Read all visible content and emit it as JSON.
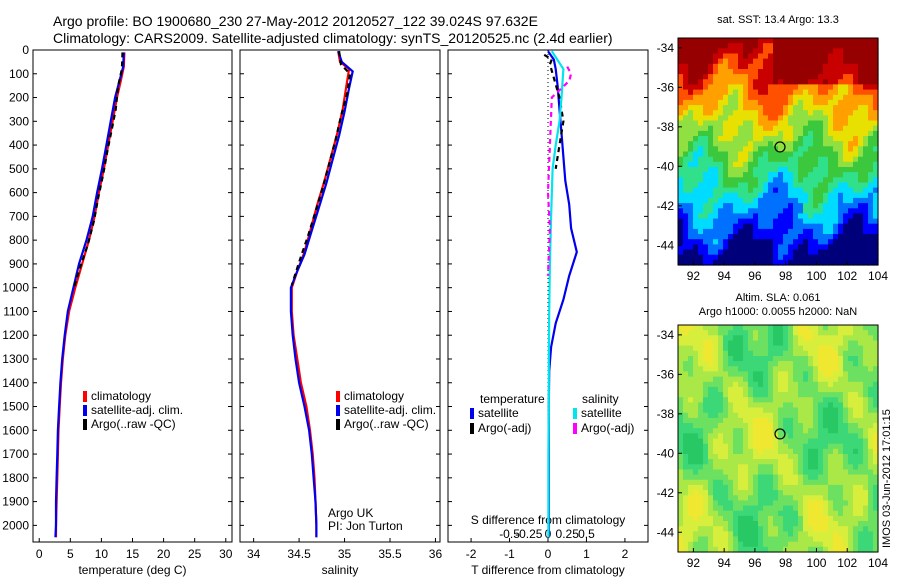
{
  "figure": {
    "title_line1": "Argo profile: BO 1900680_230 27-May-2012 20120527_122 39.024S 97.632E",
    "title_line2": "Climatology: CARS2009. Satellite-adjusted climatology: synTS_20120525.nc (2.4d earlier)",
    "side_stamp": "IMOS 03-Jun-2012 17:01:15"
  },
  "colors": {
    "climatology": "#ff0000",
    "satellite": "#0000ee",
    "argo": "#000000",
    "salinity_satellite": "#00e5ee",
    "salinity_argo": "#ff00ff"
  },
  "chart_data": [
    {
      "id": "temperature",
      "type": "line",
      "xlabel": "temperature (deg C)",
      "xlim": [
        -1,
        31
      ],
      "xticks": [
        0,
        5,
        10,
        15,
        20,
        25,
        30
      ],
      "ylim": [
        2070,
        0
      ],
      "yticks": [
        0,
        100,
        200,
        300,
        400,
        500,
        600,
        700,
        800,
        900,
        1000,
        1100,
        1200,
        1300,
        1400,
        1500,
        1600,
        1700,
        1800,
        1900,
        2000
      ],
      "legend": [
        "climatology",
        "satellite-adj. clim.",
        "Argo(..raw -QC)"
      ],
      "series": [
        {
          "name": "climatology",
          "style": "climatology",
          "dash": "",
          "points": [
            [
              13.7,
              10
            ],
            [
              13.6,
              70
            ],
            [
              13.2,
              120
            ],
            [
              12.5,
              200
            ],
            [
              11.8,
              300
            ],
            [
              11.1,
              400
            ],
            [
              10.4,
              500
            ],
            [
              9.6,
              600
            ],
            [
              8.9,
              700
            ],
            [
              8.0,
              800
            ],
            [
              6.9,
              900
            ],
            [
              5.8,
              1000
            ],
            [
              4.8,
              1100
            ],
            [
              4.2,
              1200
            ],
            [
              3.8,
              1300
            ],
            [
              3.5,
              1400
            ],
            [
              3.3,
              1500
            ],
            [
              3.1,
              1600
            ],
            [
              3.0,
              1700
            ],
            [
              2.9,
              1800
            ],
            [
              2.8,
              1900
            ],
            [
              2.7,
              2000
            ],
            [
              2.7,
              2050
            ]
          ]
        },
        {
          "name": "satellite-adj. clim.",
          "style": "satellite",
          "dash": "",
          "points": [
            [
              13.6,
              10
            ],
            [
              13.5,
              70
            ],
            [
              13.0,
              120
            ],
            [
              12.2,
              200
            ],
            [
              11.5,
              300
            ],
            [
              10.8,
              400
            ],
            [
              10.1,
              500
            ],
            [
              9.3,
              600
            ],
            [
              8.6,
              700
            ],
            [
              7.6,
              800
            ],
            [
              6.4,
              900
            ],
            [
              5.5,
              1000
            ],
            [
              4.6,
              1100
            ],
            [
              4.1,
              1200
            ],
            [
              3.7,
              1300
            ],
            [
              3.4,
              1400
            ],
            [
              3.2,
              1500
            ],
            [
              3.0,
              1600
            ],
            [
              2.9,
              1700
            ],
            [
              2.8,
              1800
            ],
            [
              2.7,
              1900
            ],
            [
              2.7,
              2000
            ],
            [
              2.6,
              2050
            ]
          ]
        },
        {
          "name": "Argo(..raw -QC)",
          "style": "argo",
          "dash": "5,4",
          "points": [
            [
              13.4,
              10
            ],
            [
              13.3,
              80
            ],
            [
              12.7,
              150
            ],
            [
              12.3,
              250
            ],
            [
              11.7,
              330
            ],
            [
              11.0,
              420
            ],
            [
              10.3,
              520
            ],
            [
              9.5,
              620
            ],
            [
              8.8,
              720
            ],
            [
              7.8,
              820
            ],
            [
              6.5,
              920
            ],
            [
              5.6,
              1000
            ]
          ]
        }
      ]
    },
    {
      "id": "salinity",
      "type": "line",
      "xlabel": "salinity",
      "xlim": [
        33.85,
        36.05
      ],
      "xticks": [
        34,
        34.5,
        35,
        35.5,
        36
      ],
      "ylim": [
        2070,
        0
      ],
      "legend": [
        "climatology",
        "satellite-adj. clim.",
        "Argo(..raw -QC)"
      ],
      "annotation": [
        "Argo UK",
        "PI: Jon Turton"
      ],
      "series": [
        {
          "name": "climatology",
          "style": "climatology",
          "dash": "",
          "points": [
            [
              34.93,
              5
            ],
            [
              34.95,
              50
            ],
            [
              35.05,
              80
            ],
            [
              35.02,
              150
            ],
            [
              34.98,
              250
            ],
            [
              34.92,
              350
            ],
            [
              34.85,
              450
            ],
            [
              34.78,
              550
            ],
            [
              34.7,
              650
            ],
            [
              34.63,
              750
            ],
            [
              34.56,
              850
            ],
            [
              34.48,
              930
            ],
            [
              34.42,
              1000
            ],
            [
              34.42,
              1100
            ],
            [
              34.44,
              1200
            ],
            [
              34.48,
              1300
            ],
            [
              34.52,
              1400
            ],
            [
              34.58,
              1500
            ],
            [
              34.62,
              1600
            ],
            [
              34.65,
              1700
            ],
            [
              34.67,
              1800
            ],
            [
              34.68,
              1900
            ],
            [
              34.69,
              2000
            ],
            [
              34.69,
              2050
            ]
          ]
        },
        {
          "name": "satellite-adj. clim.",
          "style": "satellite",
          "dash": "",
          "points": [
            [
              34.93,
              5
            ],
            [
              34.97,
              50
            ],
            [
              35.09,
              90
            ],
            [
              35.05,
              160
            ],
            [
              35.0,
              260
            ],
            [
              34.94,
              360
            ],
            [
              34.87,
              460
            ],
            [
              34.8,
              560
            ],
            [
              34.72,
              660
            ],
            [
              34.64,
              760
            ],
            [
              34.56,
              860
            ],
            [
              34.48,
              930
            ],
            [
              34.41,
              1000
            ],
            [
              34.41,
              1100
            ],
            [
              34.43,
              1200
            ],
            [
              34.46,
              1300
            ],
            [
              34.5,
              1400
            ],
            [
              34.56,
              1500
            ],
            [
              34.61,
              1600
            ],
            [
              34.64,
              1700
            ],
            [
              34.66,
              1800
            ],
            [
              34.68,
              1900
            ],
            [
              34.69,
              2000
            ],
            [
              34.69,
              2050
            ]
          ]
        },
        {
          "name": "Argo(..raw -QC)",
          "style": "argo",
          "dash": "5,4",
          "points": [
            [
              34.94,
              5
            ],
            [
              34.96,
              60
            ],
            [
              35.06,
              100
            ],
            [
              35.03,
              180
            ],
            [
              34.96,
              280
            ],
            [
              34.9,
              380
            ],
            [
              34.83,
              480
            ],
            [
              34.76,
              580
            ],
            [
              34.68,
              680
            ],
            [
              34.6,
              780
            ],
            [
              34.52,
              870
            ],
            [
              34.46,
              940
            ],
            [
              34.42,
              990
            ]
          ]
        }
      ]
    },
    {
      "id": "difference",
      "type": "line",
      "xlabel": "T difference from climatology",
      "xlabel_top": "S difference from climatology",
      "xlim": [
        -2.6,
        2.6
      ],
      "xticks": [
        -2,
        -1,
        0,
        1,
        2
      ],
      "top_ticks": [
        "-0.5",
        "-0.25",
        "0",
        "0.25",
        "0.5"
      ],
      "ylim": [
        2070,
        0
      ],
      "legend_headings": [
        "temperature",
        "salinity"
      ],
      "legend_left": [
        "satellite",
        "Argo(-adj)"
      ],
      "legend_right": [
        "satellite",
        "Argo(-adj)"
      ],
      "series": [
        {
          "name": "satellite",
          "style": "satellite",
          "dash": "",
          "points": [
            [
              0,
              5
            ],
            [
              0.15,
              40
            ],
            [
              0.2,
              80
            ],
            [
              0.25,
              150
            ],
            [
              0.3,
              250
            ],
            [
              0.35,
              350
            ],
            [
              0.4,
              450
            ],
            [
              0.45,
              550
            ],
            [
              0.55,
              650
            ],
            [
              0.6,
              750
            ],
            [
              0.75,
              850
            ],
            [
              0.55,
              950
            ],
            [
              0.4,
              1050
            ],
            [
              0.2,
              1150
            ],
            [
              0.08,
              1250
            ],
            [
              0.03,
              1350
            ],
            [
              0.02,
              1500
            ],
            [
              0.02,
              1700
            ],
            [
              0.02,
              1900
            ],
            [
              0.02,
              2050
            ]
          ]
        },
        {
          "name": "Argo(-adj)",
          "style": "argo",
          "dash": "5,4",
          "points": [
            [
              -0.1,
              20
            ],
            [
              0.1,
              40
            ],
            [
              0.05,
              60
            ],
            [
              0.3,
              200
            ],
            [
              0.4,
              300
            ],
            [
              0.3,
              400
            ],
            [
              0.2,
              500
            ]
          ]
        },
        {
          "name": "satellite",
          "style": "salinity_satellite",
          "dash": "",
          "points": [
            [
              0.1,
              5
            ],
            [
              0.4,
              80
            ],
            [
              0.35,
              200
            ],
            [
              0.3,
              300
            ],
            [
              0.2,
              400
            ],
            [
              0.12,
              500
            ],
            [
              0.08,
              700
            ],
            [
              0.05,
              900
            ],
            [
              0.03,
              1100
            ],
            [
              0.02,
              1300
            ],
            [
              0.02,
              1500
            ],
            [
              0.01,
              1700
            ],
            [
              0.01,
              1900
            ],
            [
              0.01,
              2050
            ]
          ]
        },
        {
          "name": "Argo(-adj)",
          "style": "salinity_argo",
          "dash": "5,4",
          "points": [
            [
              0.5,
              70
            ],
            [
              0.6,
              100
            ],
            [
              0.55,
              130
            ],
            [
              0.1,
              200
            ],
            [
              0.05,
              400
            ],
            [
              0.0,
              600
            ],
            [
              0.05,
              750
            ],
            [
              0.0,
              950
            ]
          ]
        }
      ]
    },
    {
      "id": "sst_map",
      "type": "heatmap",
      "title": "sat. SST: 13.4 Argo: 13.3",
      "xlim": [
        91,
        104
      ],
      "ylim": [
        -45,
        -33.5
      ],
      "xticks": [
        92,
        94,
        96,
        98,
        100,
        102,
        104
      ],
      "yticks": [
        -34,
        -36,
        -38,
        -40,
        -42,
        -44
      ],
      "marker": [
        97.63,
        -39.02
      ]
    },
    {
      "id": "sla_map",
      "type": "heatmap",
      "title": "Altim. SLA: 0.061",
      "subtitle": "Argo h1000: 0.0055 h2000: NaN",
      "xlim": [
        91,
        104
      ],
      "ylim": [
        -45,
        -33.5
      ],
      "xticks": [
        92,
        94,
        96,
        98,
        100,
        102,
        104
      ],
      "yticks": [
        -34,
        -36,
        -38,
        -40,
        -42,
        -44
      ],
      "marker": [
        97.63,
        -39.02
      ]
    }
  ]
}
